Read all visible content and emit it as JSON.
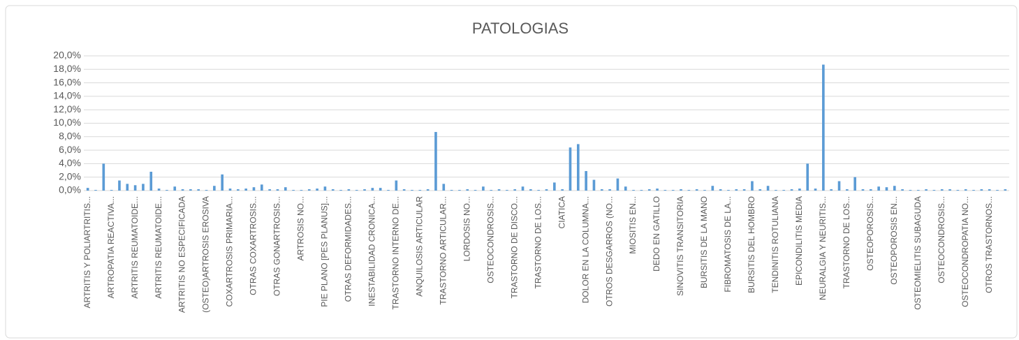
{
  "chart_data": {
    "type": "bar",
    "title": "PATOLOGIAS",
    "categories": [
      "ARTRITIS Y POLIARTRITIS...",
      null,
      null,
      "ARTROPATIA REACTIVA...",
      null,
      null,
      "ARTRITIS REUMATOIDE...",
      null,
      null,
      "ARTRITIS REUMATOIDE...",
      null,
      null,
      "ARTRITIS NO ESPECIFICADA",
      null,
      null,
      "(OSTEO)ARTROSIS EROSIVA",
      null,
      null,
      "COXARTROSIS PRIMARIA...",
      null,
      null,
      "OTRAS COXARTROSIS...",
      null,
      null,
      "OTRAS GONARTROSIS...",
      null,
      null,
      "ARTROSIS NO...",
      null,
      null,
      "PIE PLANO [PES PLANUS]...",
      null,
      null,
      "OTRAS DEFORMIDADES...",
      null,
      null,
      "INESTABILIDAD CRONICA...",
      null,
      null,
      "TRASTORNO INTERNO DE...",
      null,
      null,
      "ANQUILOSIS ARTICULAR",
      null,
      null,
      "TRASTORNO ARTICULAR...",
      null,
      null,
      "LORDOSIS NO...",
      null,
      null,
      "OSTEOCONDROSIS...",
      null,
      null,
      "TRASTORNO DE DISCO...",
      null,
      null,
      "TRASTORNO DE LOS...",
      null,
      null,
      "CIATICA",
      null,
      null,
      "DOLOR EN LA COLUMNA...",
      null,
      null,
      "OTROS DESGARROS (NO...",
      null,
      null,
      "MIOSITIS EN...",
      null,
      null,
      "DEDO EN GATILLO",
      null,
      null,
      "SINOVITIS TRANSITORIA",
      null,
      null,
      "BURSITIS DE LA MANO",
      null,
      null,
      "FIBROMATOSIS DE LA...",
      null,
      null,
      "BURSITIS DEL HOMBRO",
      null,
      null,
      "TENDINITIS ROTULIANA",
      null,
      null,
      "EPICONDILITIS MEDIA",
      null,
      null,
      "NEURALGIA Y NEURITIS...",
      null,
      null,
      "TRASTORNO DE LOS...",
      null,
      null,
      "OSTEOPOROSIS...",
      null,
      null,
      "OSTEOPOROSIS EN...",
      null,
      null,
      "OSTEOMIELITIS SUBAGUDA",
      null,
      null,
      "OSTEOCONDROSIS...",
      null,
      null,
      "OSTEOCONDROPATIA NO...",
      null,
      null,
      "OTROS TRASTORNOS...",
      null,
      null
    ],
    "values": [
      0.4,
      0.1,
      4.0,
      0.1,
      1.5,
      1.0,
      0.8,
      1.0,
      2.8,
      0.3,
      0.1,
      0.6,
      0.2,
      0.2,
      0.2,
      0.1,
      0.7,
      2.4,
      0.3,
      0.2,
      0.3,
      0.5,
      0.9,
      0.2,
      0.2,
      0.5,
      0.1,
      0.1,
      0.2,
      0.3,
      0.6,
      0.2,
      0.1,
      0.2,
      0.1,
      0.2,
      0.4,
      0.4,
      0.1,
      1.5,
      0.2,
      0.1,
      0.1,
      0.2,
      8.7,
      1.0,
      0.1,
      0.1,
      0.2,
      0.1,
      0.6,
      0.1,
      0.2,
      0.1,
      0.2,
      0.6,
      0.2,
      0.1,
      0.2,
      1.2,
      0.2,
      6.4,
      6.9,
      2.9,
      1.6,
      0.2,
      0.2,
      1.8,
      0.6,
      0.1,
      0.1,
      0.2,
      0.3,
      0.1,
      0.1,
      0.2,
      0.1,
      0.2,
      0.1,
      0.7,
      0.2,
      0.1,
      0.2,
      0.2,
      1.4,
      0.2,
      0.7,
      0.1,
      0.1,
      0.2,
      0.3,
      4.0,
      0.3,
      18.7,
      0.2,
      1.4,
      0.2,
      2.0,
      0.2,
      0.2,
      0.6,
      0.5,
      0.7,
      0.2,
      0.1,
      0.1,
      0.2,
      0.1,
      0.2,
      0.2,
      0.1,
      0.2,
      0.1,
      0.2,
      0.2,
      0.1,
      0.2
    ],
    "color": "#5b9bd5",
    "ylim": [
      0,
      20
    ],
    "yticks": [
      {
        "value": 0,
        "label": "0,0%"
      },
      {
        "value": 2,
        "label": "2,0%"
      },
      {
        "value": 4,
        "label": "4,0%"
      },
      {
        "value": 6,
        "label": "6,0%"
      },
      {
        "value": 8,
        "label": "8,0%"
      },
      {
        "value": 10,
        "label": "10,0%"
      },
      {
        "value": 12,
        "label": "12,0%"
      },
      {
        "value": 14,
        "label": "14,0%"
      },
      {
        "value": 16,
        "label": "16,0%"
      },
      {
        "value": 18,
        "label": "18,0%"
      },
      {
        "value": 20,
        "label": "20,0%"
      }
    ],
    "grid": true
  }
}
